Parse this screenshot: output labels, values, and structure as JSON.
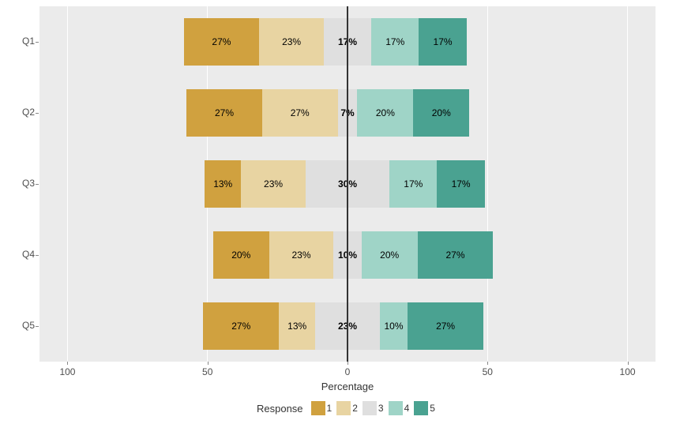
{
  "chart": {
    "type": "diverging_stacked_bar",
    "background_color": "#ffffff",
    "panel_background": "#ebebeb",
    "grid_color": "#ffffff",
    "center_line_color": "#333333",
    "x_axis": {
      "title": "Percentage",
      "ticks": [
        -100,
        -50,
        0,
        50,
        100
      ],
      "tick_labels": [
        "100",
        "50",
        "0",
        "50",
        "100"
      ],
      "min": -110,
      "max": 110
    },
    "y_categories": [
      "Q1",
      "Q2",
      "Q3",
      "Q4",
      "Q5"
    ],
    "response_levels": [
      "1",
      "2",
      "3",
      "4",
      "5"
    ],
    "colors": {
      "1": "#d0a13f",
      "2": "#e8d4a2",
      "3": "#dfdfdf",
      "4": "#9fd4c7",
      "5": "#4aa291"
    },
    "legend_title": "Response",
    "bar_height_ratio": 0.67,
    "rows": [
      {
        "key": "Q1",
        "segments": [
          {
            "level": "1",
            "value": 27,
            "label": "27%"
          },
          {
            "level": "2",
            "value": 23,
            "label": "23%"
          },
          {
            "level": "3",
            "value": 17,
            "label": "17%"
          },
          {
            "level": "4",
            "value": 17,
            "label": "17%"
          },
          {
            "level": "5",
            "value": 17,
            "label": "17%"
          }
        ]
      },
      {
        "key": "Q2",
        "segments": [
          {
            "level": "1",
            "value": 27,
            "label": "27%"
          },
          {
            "level": "2",
            "value": 27,
            "label": "27%"
          },
          {
            "level": "3",
            "value": 7,
            "label": "7%"
          },
          {
            "level": "4",
            "value": 20,
            "label": "20%"
          },
          {
            "level": "5",
            "value": 20,
            "label": "20%"
          }
        ]
      },
      {
        "key": "Q3",
        "segments": [
          {
            "level": "1",
            "value": 13,
            "label": "13%"
          },
          {
            "level": "2",
            "value": 23,
            "label": "23%"
          },
          {
            "level": "3",
            "value": 30,
            "label": "30%"
          },
          {
            "level": "4",
            "value": 17,
            "label": "17%"
          },
          {
            "level": "5",
            "value": 17,
            "label": "17%"
          }
        ]
      },
      {
        "key": "Q4",
        "segments": [
          {
            "level": "1",
            "value": 20,
            "label": "20%"
          },
          {
            "level": "2",
            "value": 23,
            "label": "23%"
          },
          {
            "level": "3",
            "value": 10,
            "label": "10%"
          },
          {
            "level": "4",
            "value": 20,
            "label": "20%"
          },
          {
            "level": "5",
            "value": 27,
            "label": "27%"
          }
        ]
      },
      {
        "key": "Q5",
        "segments": [
          {
            "level": "1",
            "value": 27,
            "label": "27%"
          },
          {
            "level": "2",
            "value": 13,
            "label": "13%"
          },
          {
            "level": "3",
            "value": 23,
            "label": "23%"
          },
          {
            "level": "4",
            "value": 10,
            "label": "10%"
          },
          {
            "level": "5",
            "value": 27,
            "label": "27%"
          }
        ]
      }
    ],
    "font": {
      "axis_label_size": 12,
      "axis_title_size": 13,
      "segment_label_size": 12
    }
  }
}
